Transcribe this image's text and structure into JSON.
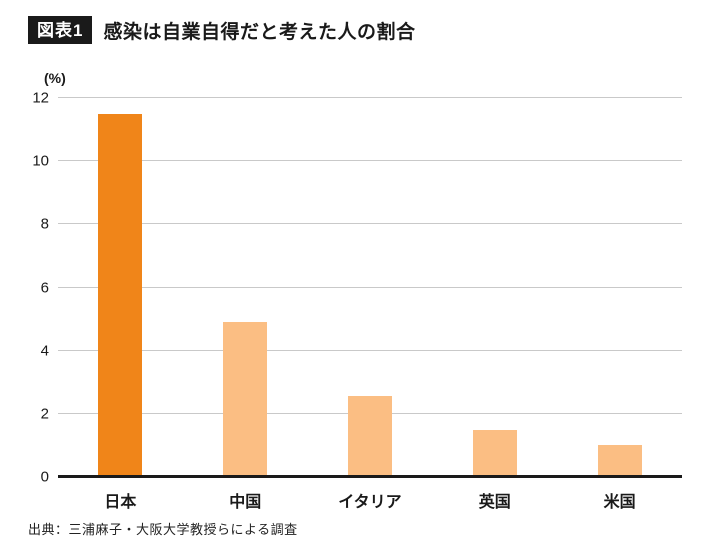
{
  "header": {
    "badge": "図表1",
    "title": "感染は自業自得だと考えた人の割合"
  },
  "chart_data": {
    "type": "bar",
    "title": "感染は自業自得だと考えた人の割合",
    "unit_label": "(%)",
    "categories": [
      "日本",
      "中国",
      "イタリア",
      "英国",
      "米国"
    ],
    "values": [
      11.5,
      4.9,
      2.55,
      1.5,
      1.0
    ],
    "ylim": [
      0,
      12
    ],
    "yticks": [
      0,
      2,
      4,
      6,
      8,
      10,
      12
    ],
    "grid": true,
    "legend": "none",
    "bar_colors": [
      "#F08519",
      "#FBBE83",
      "#FBBE83",
      "#FBBE83",
      "#FBBE83"
    ]
  },
  "colors": {
    "highlight_bar": "#F08519",
    "default_bar": "#FBBE83",
    "gridline": "#c9c9c9",
    "baseline": "#1a1a1a",
    "badge_bg": "#1a1a1a"
  },
  "footer": {
    "source": "出典：三浦麻子・大阪大学教授らによる調査"
  }
}
